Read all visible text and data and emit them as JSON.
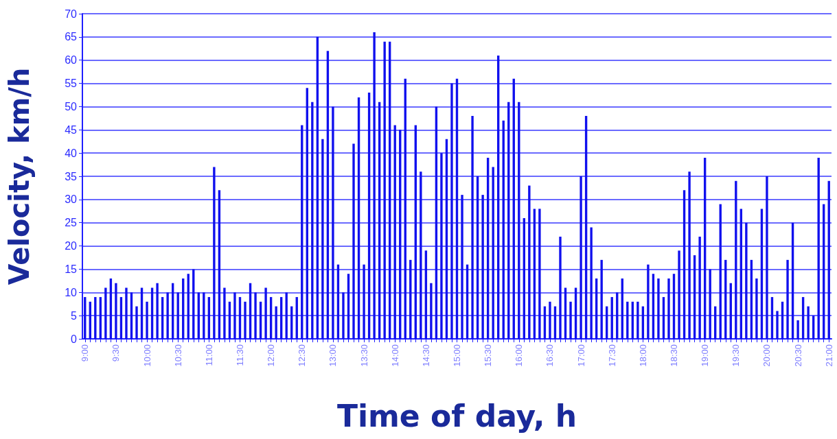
{
  "chart_data": {
    "type": "bar",
    "xlabel": "Time of day, h",
    "ylabel": "Velocity, km/h",
    "categories": [
      "9:00",
      null,
      null,
      null,
      null,
      null,
      "9:30",
      null,
      null,
      null,
      null,
      null,
      "10:00",
      null,
      null,
      null,
      null,
      null,
      "10:30",
      null,
      null,
      null,
      null,
      null,
      "11:00",
      null,
      null,
      null,
      null,
      null,
      "11:30",
      null,
      null,
      null,
      null,
      null,
      "12:00",
      null,
      null,
      null,
      null,
      null,
      "12:30",
      null,
      null,
      null,
      null,
      null,
      "13:00",
      null,
      null,
      null,
      null,
      null,
      "13:30",
      null,
      null,
      null,
      null,
      null,
      "14:00",
      null,
      null,
      null,
      null,
      null,
      "14:30",
      null,
      null,
      null,
      null,
      null,
      "15:00",
      null,
      null,
      null,
      null,
      null,
      "15:30",
      null,
      null,
      null,
      null,
      null,
      "16:00",
      null,
      null,
      null,
      null,
      null,
      "16:30",
      null,
      null,
      null,
      null,
      null,
      "17:00",
      null,
      null,
      null,
      null,
      null,
      "17:30",
      null,
      null,
      null,
      null,
      null,
      "18:00",
      null,
      null,
      null,
      null,
      null,
      "18:30",
      null,
      null,
      null,
      null,
      null,
      "19:00",
      null,
      null,
      null,
      null,
      null,
      "19:30",
      null,
      null,
      null,
      null,
      null,
      "20:00",
      null,
      null,
      null,
      null,
      null,
      "20:30",
      null,
      null,
      null,
      null,
      null,
      "21:00"
    ],
    "values": [
      9,
      8,
      9,
      9,
      11,
      13,
      12,
      9,
      11,
      10,
      7,
      11,
      8,
      11,
      12,
      9,
      10,
      12,
      10,
      13,
      14,
      15,
      10,
      10,
      9,
      37,
      32,
      11,
      8,
      10,
      9,
      8,
      12,
      10,
      8,
      11,
      9,
      7,
      9,
      10,
      7,
      9,
      46,
      54,
      51,
      65,
      43,
      62,
      50,
      16,
      10,
      14,
      42,
      52,
      16,
      53,
      66,
      51,
      64,
      64,
      46,
      45,
      56,
      17,
      46,
      36,
      19,
      12,
      50,
      40,
      43,
      55,
      56,
      31,
      16,
      48,
      35,
      31,
      39,
      37,
      61,
      47,
      51,
      56,
      51,
      26,
      33,
      28,
      28,
      7,
      8,
      7,
      22,
      11,
      8,
      11,
      35,
      48,
      24,
      13,
      17,
      7,
      9,
      10,
      13,
      8,
      8,
      8,
      7,
      16,
      14,
      13,
      9,
      13,
      14,
      19,
      32,
      36,
      18,
      22,
      39,
      15,
      7,
      29,
      17,
      12,
      34,
      28,
      25,
      17,
      13,
      28,
      35,
      9,
      6,
      8,
      17,
      25,
      4,
      9,
      7,
      5,
      39,
      29,
      34
    ],
    "color": "#1010ee",
    "ylim": [
      0,
      70
    ],
    "yticks": [
      0,
      5,
      10,
      15,
      20,
      25,
      30,
      35,
      40,
      45,
      50,
      55,
      60,
      65,
      70
    ],
    "grid": "y"
  }
}
